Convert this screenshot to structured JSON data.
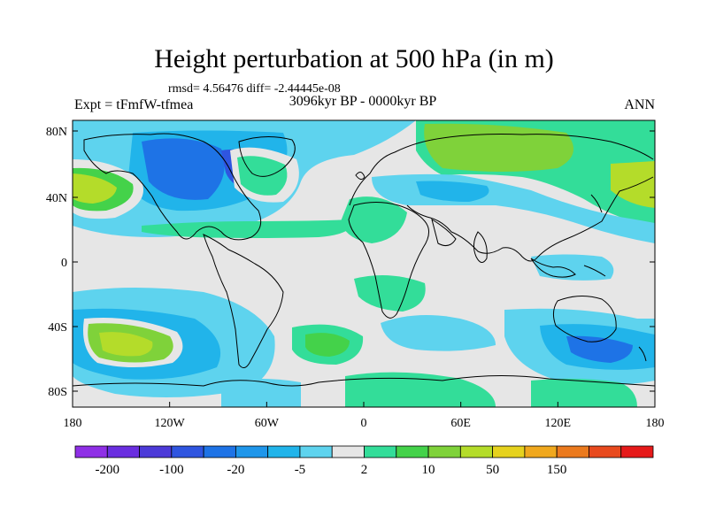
{
  "title": "Height perturbation at 500 hPa (in m)",
  "stats_line": "rmsd= 4.56476 diff= -2.44445e-08",
  "experiment": "Expt = tFmfW-tfmea",
  "period": "3096kyr BP - 0000kyr BP",
  "season": "ANN",
  "lat_ticks": [
    "80N",
    "40N",
    "0",
    "40S",
    "80S"
  ],
  "lon_ticks": [
    "180",
    "120W",
    "60W",
    "0",
    "60E",
    "120E",
    "180"
  ],
  "colorbar": {
    "colors": [
      "#8f2fe6",
      "#6a2ee0",
      "#4c3ad8",
      "#2f55e0",
      "#1e73e6",
      "#1f96ea",
      "#21b4ea",
      "#5ed3ee",
      "#e6e6e6",
      "#33dd99",
      "#44d24a",
      "#7fd23a",
      "#b4dc2a",
      "#e6d21e",
      "#f0a81e",
      "#eb7a1e",
      "#e84a1e",
      "#e61a1a"
    ],
    "labels": [
      "-200",
      "-100",
      "-20",
      "-5",
      "2",
      "10",
      "50",
      "150"
    ]
  },
  "colors": {
    "background_field": "#e6e6e6",
    "coast": "#000000"
  }
}
